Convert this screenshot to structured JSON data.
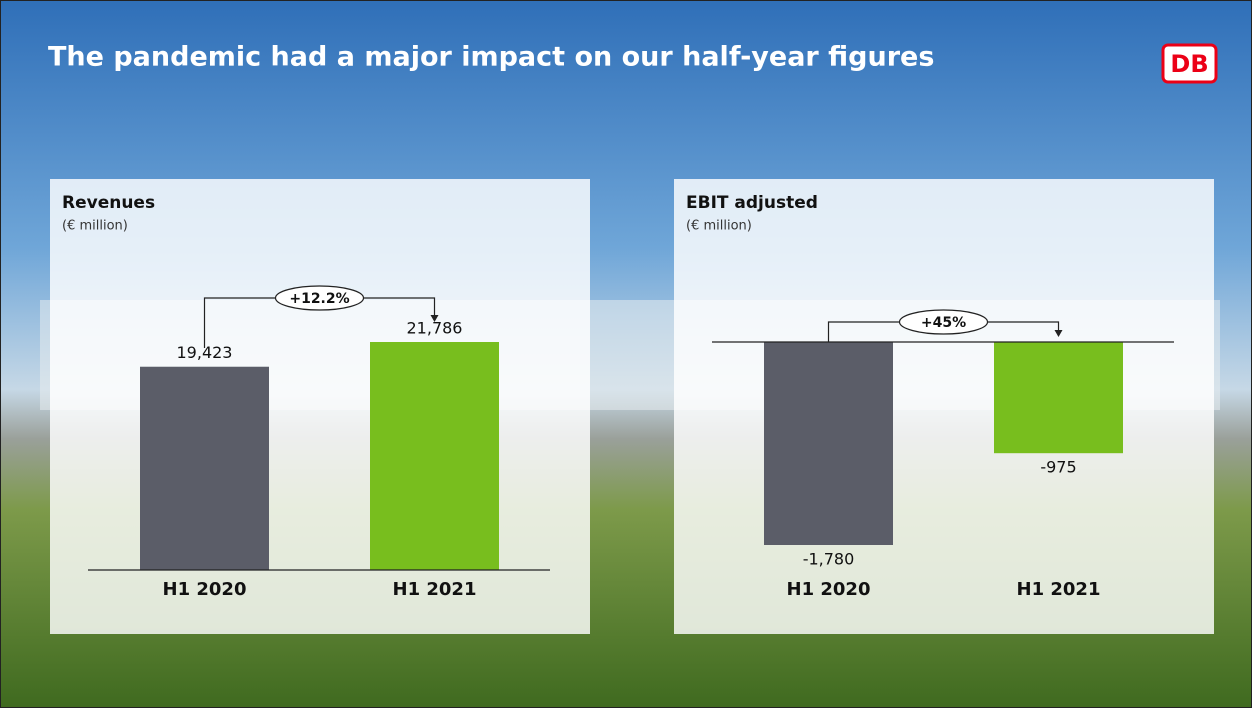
{
  "title": "The pandemic had a major impact on our half-year figures",
  "logo": "DB",
  "chart_data": [
    {
      "type": "bar",
      "title": "Revenues",
      "subtitle": "(€ million)",
      "categories": [
        "H1 2020",
        "H1 2021"
      ],
      "values": [
        19423,
        21786
      ],
      "value_labels": [
        "19,423",
        "21,786"
      ],
      "colors": [
        "#5b5d68",
        "#78be1e"
      ],
      "annotation": "+12.2%"
    },
    {
      "type": "bar",
      "title": "EBIT adjusted",
      "subtitle": "(€ million)",
      "categories": [
        "H1 2020",
        "H1 2021"
      ],
      "values": [
        -1780,
        -975
      ],
      "value_labels": [
        "-1,780",
        "-975"
      ],
      "colors": [
        "#5b5d68",
        "#78be1e"
      ],
      "annotation": "+45%"
    }
  ]
}
